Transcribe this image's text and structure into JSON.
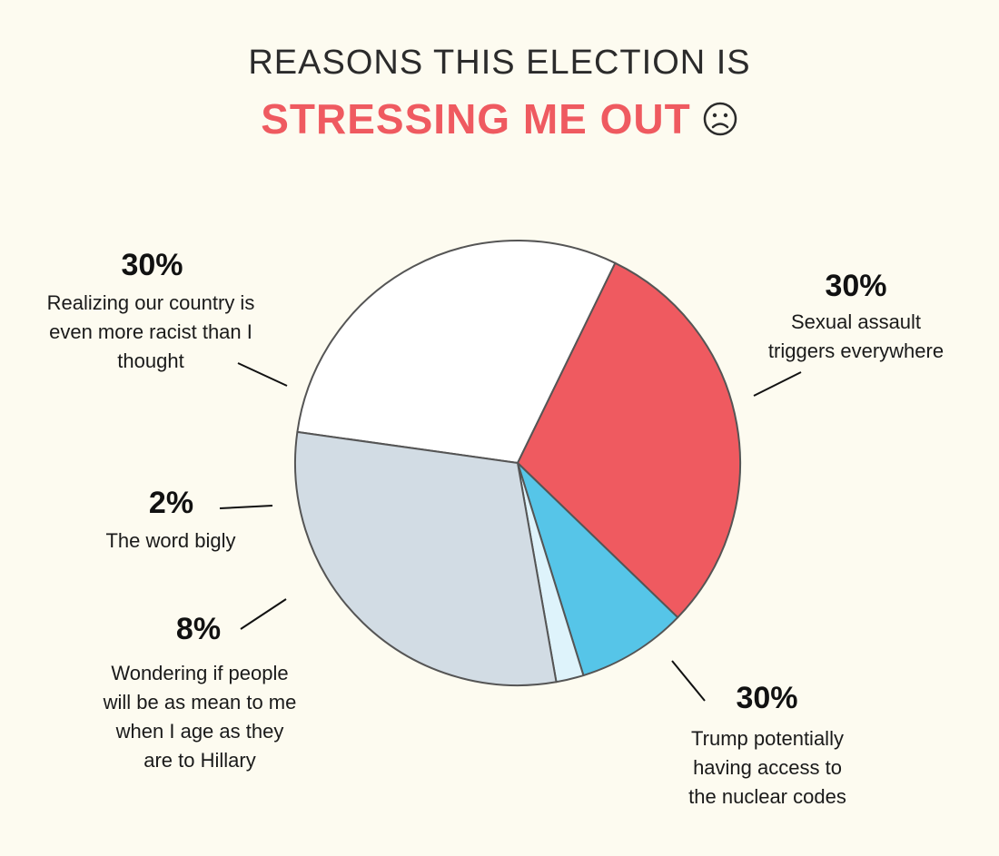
{
  "title_line1": "REASONS THIS ELECTION IS",
  "title_line2": "STRESSING ME OUT",
  "title_icon": "sad-face-icon",
  "chart_data": {
    "type": "pie",
    "slices": [
      {
        "label": "Sexual assault triggers everywhere",
        "value": 30,
        "display": "30%",
        "color": "#ffffff"
      },
      {
        "label": "Trump potentially having access to the nuclear codes",
        "value": 30,
        "display": "30%",
        "color": "#ef5a60"
      },
      {
        "label": "Wondering if people will be as mean to me when I age as they are to Hillary",
        "value": 8,
        "display": "8%",
        "color": "#56c5e8"
      },
      {
        "label": "The word bigly",
        "value": 2,
        "display": "2%",
        "color": "#def3fb"
      },
      {
        "label": "Realizing our country is even more racist than I thought",
        "value": 30,
        "display": "30%",
        "color": "#d2dce4"
      }
    ]
  }
}
